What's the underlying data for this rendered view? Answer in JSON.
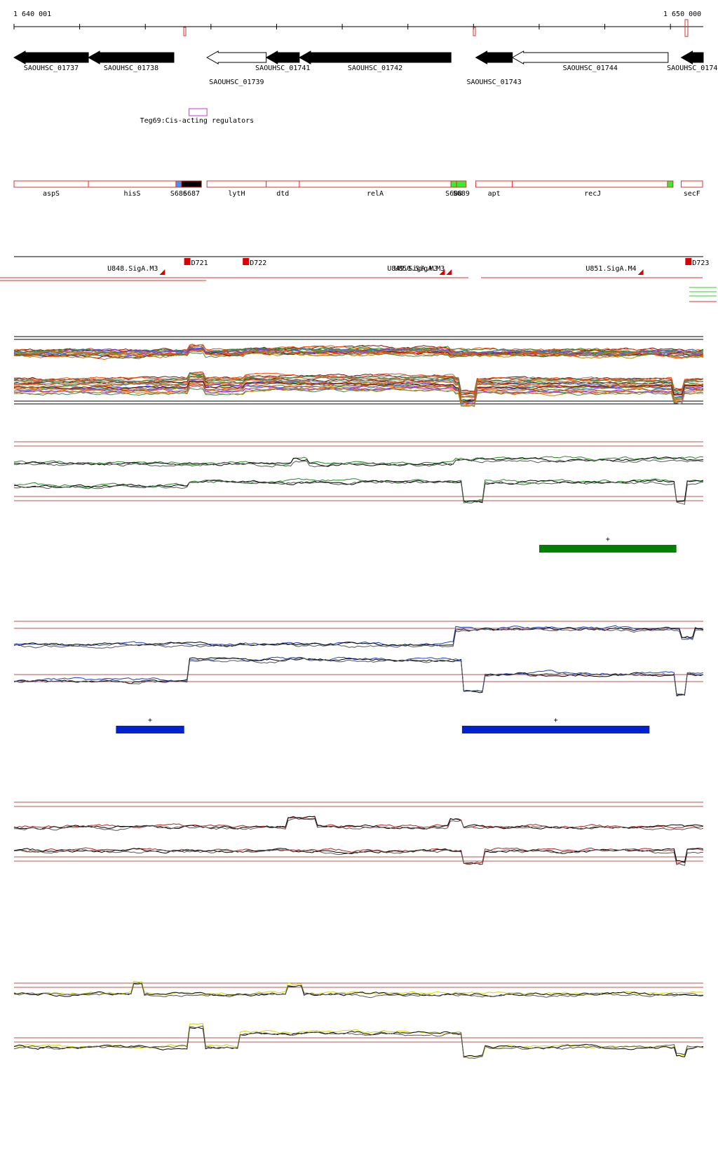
{
  "ruler": {
    "start_label": "1 640 001",
    "end_label": "1 650 000",
    "start": 1640001,
    "end": 1650000
  },
  "genes": [
    {
      "label": "SAOUHSC_01737",
      "start": 1640001,
      "end": 1641080,
      "strand": "-",
      "fill": "black",
      "row": 0
    },
    {
      "label": "SAOUHSC_01738",
      "start": 1641080,
      "end": 1642320,
      "strand": "-",
      "fill": "black",
      "row": 0
    },
    {
      "label": "SAOUHSC_01739",
      "start": 1642800,
      "end": 1643660,
      "strand": "-",
      "fill": "white",
      "row": 1
    },
    {
      "label": "SAOUHSC_01741",
      "start": 1643660,
      "end": 1644140,
      "strand": "-",
      "fill": "black",
      "row": 0
    },
    {
      "label": "SAOUHSC_01742",
      "start": 1644140,
      "end": 1646340,
      "strand": "-",
      "fill": "black",
      "row": 0
    },
    {
      "label": "SAOUHSC_01743",
      "start": 1646700,
      "end": 1647230,
      "strand": "-",
      "fill": "black",
      "row": 1
    },
    {
      "label": "SAOUHSC_01744",
      "start": 1647230,
      "end": 1649490,
      "strand": "-",
      "fill": "white",
      "row": 0
    },
    {
      "label": "SAOUHSC_0174",
      "start": 1649680,
      "end": 1650000,
      "strand": "-",
      "fill": "black",
      "row": 0
    }
  ],
  "regulator": {
    "label": "Teg69:Cis-acting regulators",
    "start": 1642540,
    "end": 1642800,
    "color": "#cc33cc"
  },
  "features": [
    {
      "label": "aspS",
      "start": 1640001,
      "end": 1641080
    },
    {
      "label": "hisS",
      "start": 1641080,
      "end": 1642350
    },
    {
      "label": "S686",
      "start": 1642350,
      "end": 1642430,
      "fill": "#3399ff"
    },
    {
      "label": "S687",
      "start": 1642430,
      "end": 1642720,
      "fill": "#000000"
    },
    {
      "label": "lytH",
      "start": 1642800,
      "end": 1643660
    },
    {
      "label": "dtd",
      "start": 1643660,
      "end": 1644140
    },
    {
      "label": "relA",
      "start": 1644140,
      "end": 1646340
    },
    {
      "label": "S688",
      "start": 1646340,
      "end": 1646420,
      "fill": "#33ee33"
    },
    {
      "label": "S689",
      "start": 1646420,
      "end": 1646560,
      "fill": "#33ee33"
    },
    {
      "label": "apt",
      "start": 1646700,
      "end": 1647230
    },
    {
      "label": "recJ",
      "start": 1647230,
      "end": 1649560
    },
    {
      "label": "",
      "start": 1649480,
      "end": 1649560,
      "fill": "#33ee33"
    },
    {
      "label": "secF",
      "start": 1649680,
      "end": 1650000
    }
  ],
  "tss": [
    {
      "label": "D721",
      "pos": 1642530
    },
    {
      "label": "D722",
      "pos": 1643380
    },
    {
      "label": "D723",
      "pos": 1649800
    }
  ],
  "operon_labels": [
    {
      "label": "U848.SigA.M3",
      "pos": 1642090
    },
    {
      "label": "U849.SigA.M3",
      "pos": 1646150
    },
    {
      "label": "U850.SigA.M3",
      "pos": 1646250
    },
    {
      "label": "U851.SigA.M4",
      "pos": 1649030
    }
  ],
  "expression_tracks": [
    {
      "name": "all",
      "colors": [
        "#8b0000",
        "#cc6600",
        "#228b22",
        "#4169e1",
        "#8a2be2",
        "#b8860b",
        "#ff4500",
        "#2e8b57",
        "#808080",
        "#d2691e"
      ]
    },
    {
      "name": "green",
      "color": "#228b22"
    },
    {
      "name": "blue",
      "color": "#1f3fbf"
    },
    {
      "name": "red",
      "color": "#b22222"
    },
    {
      "name": "yellow",
      "color": "#d4d400"
    }
  ],
  "segments": [
    {
      "track": "green",
      "label": "+",
      "start": 1647620,
      "end": 1649610,
      "color": "#008000"
    },
    {
      "track": "blue",
      "label": "+",
      "start": 1641480,
      "end": 1642470,
      "color": "#0022cc"
    },
    {
      "track": "blue",
      "label": "+",
      "start": 1646500,
      "end": 1649220,
      "color": "#0022cc"
    }
  ]
}
